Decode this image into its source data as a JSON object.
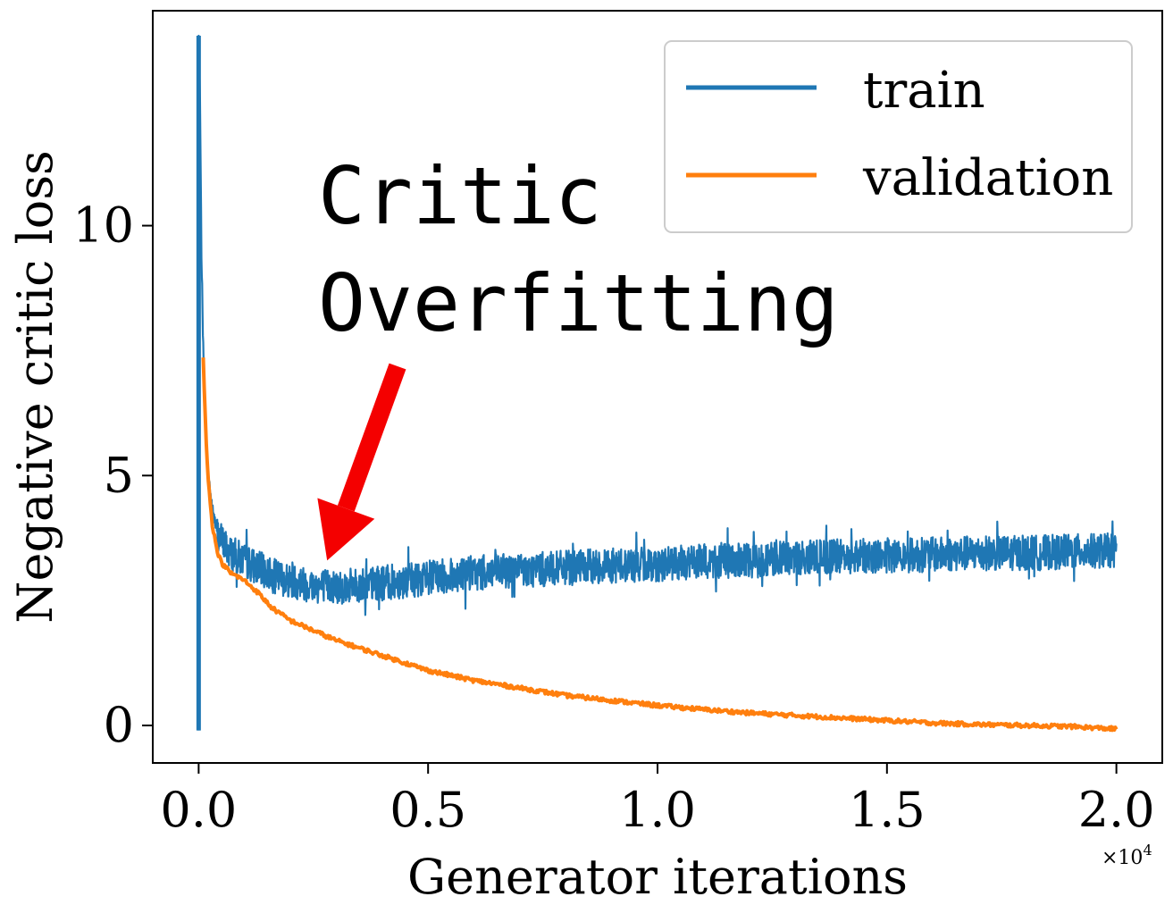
{
  "chart_data": {
    "type": "line",
    "title": "",
    "xlabel": "Generator iterations",
    "ylabel": "Negative critic loss",
    "x_multiplier": "×10",
    "x_multiplier_exp": "4",
    "xlim": [
      -0.1,
      2.1
    ],
    "ylim": [
      -0.75,
      14.3
    ],
    "xticks": [
      0.0,
      0.5,
      1.0,
      1.5,
      2.0
    ],
    "xtick_labels": [
      "0.0",
      "0.5",
      "1.0",
      "1.5",
      "2.0"
    ],
    "yticks": [
      0,
      5,
      10
    ],
    "ytick_labels": [
      "0",
      "5",
      "10"
    ],
    "grid": false,
    "legend": {
      "placement": "top-right",
      "entries": [
        {
          "name": "train",
          "color": "#1f77b4"
        },
        {
          "name": "validation",
          "color": "#ff7f0e"
        }
      ]
    },
    "annotation": {
      "lines": [
        "Critic",
        "Overfitting"
      ],
      "arrow_color": "#f40000",
      "arrow_target": {
        "x": 0.28,
        "y": 3.3
      }
    },
    "series": [
      {
        "name": "train",
        "color": "#1f77b4",
        "x": [
          0.0,
          0.0,
          0.003,
          0.006,
          0.01,
          0.015,
          0.02,
          0.03,
          0.04,
          0.05,
          0.07,
          0.1,
          0.13,
          0.16,
          0.2,
          0.25,
          0.3,
          0.35,
          0.4,
          0.5,
          0.6,
          0.7,
          0.8,
          0.9,
          1.0,
          1.1,
          1.2,
          1.3,
          1.4,
          1.5,
          1.6,
          1.7,
          1.8,
          1.9,
          2.0
        ],
        "values": [
          -0.1,
          13.8,
          12.5,
          9.5,
          7.5,
          6.0,
          5.1,
          4.3,
          3.9,
          3.7,
          3.45,
          3.3,
          3.15,
          3.0,
          2.9,
          2.8,
          2.78,
          2.8,
          2.85,
          2.95,
          3.05,
          3.1,
          3.15,
          3.2,
          3.22,
          3.28,
          3.3,
          3.35,
          3.38,
          3.4,
          3.42,
          3.45,
          3.45,
          3.48,
          3.5
        ],
        "band_halfwidth": 0.35
      },
      {
        "name": "validation",
        "color": "#ff7f0e",
        "x": [
          0.01,
          0.015,
          0.02,
          0.03,
          0.04,
          0.05,
          0.07,
          0.1,
          0.13,
          0.16,
          0.2,
          0.25,
          0.3,
          0.35,
          0.4,
          0.5,
          0.6,
          0.7,
          0.8,
          0.9,
          1.0,
          1.1,
          1.2,
          1.3,
          1.4,
          1.5,
          1.6,
          1.7,
          1.8,
          1.9,
          2.0
        ],
        "values": [
          7.4,
          6.0,
          5.0,
          4.0,
          3.5,
          3.25,
          3.05,
          2.9,
          2.65,
          2.35,
          2.1,
          1.9,
          1.7,
          1.55,
          1.4,
          1.1,
          0.9,
          0.75,
          0.6,
          0.5,
          0.4,
          0.32,
          0.25,
          0.2,
          0.15,
          0.1,
          0.05,
          0.02,
          0.0,
          -0.02,
          -0.07
        ]
      }
    ]
  }
}
